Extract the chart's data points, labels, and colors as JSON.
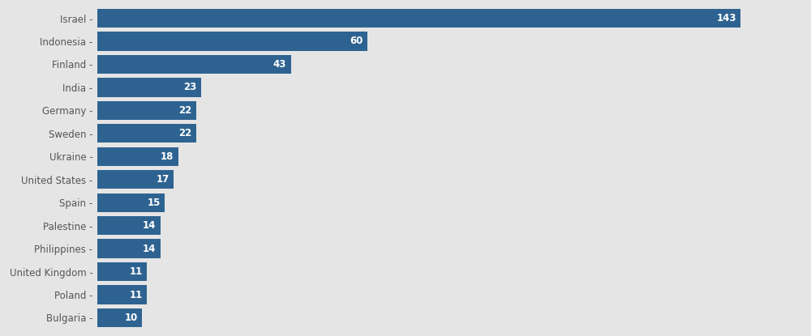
{
  "categories": [
    "Bulgaria",
    "Poland",
    "United Kingdom",
    "Philippines",
    "Palestine",
    "Spain",
    "United States",
    "Ukraine",
    "Sweden",
    "Germany",
    "India",
    "Finland",
    "Indonesia",
    "Israel"
  ],
  "values": [
    10,
    11,
    11,
    14,
    14,
    15,
    17,
    18,
    22,
    22,
    23,
    43,
    60,
    143
  ],
  "bar_color": "#2e6391",
  "label_color": "#ffffff",
  "background_color": "#e5e5e5",
  "plot_background_color": "#e5e5e5",
  "xlim": [
    0,
    155
  ],
  "grid_color": "#ffffff",
  "bar_height": 0.82,
  "label_fontsize": 8.5,
  "tick_fontsize": 8.5
}
